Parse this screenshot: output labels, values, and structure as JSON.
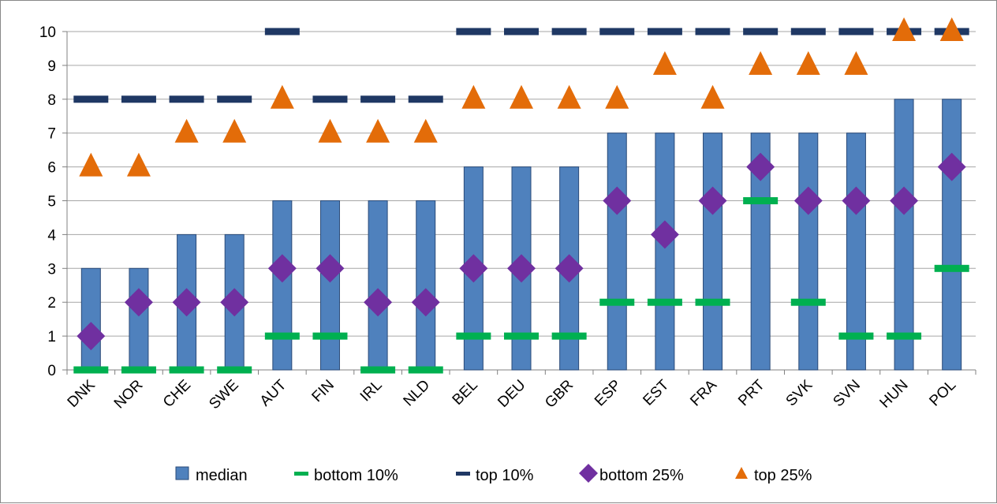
{
  "chart_data": {
    "type": "bar",
    "title": "",
    "xlabel": "",
    "ylabel": "",
    "ylim": [
      0,
      10
    ],
    "y_ticks": [
      0,
      1,
      2,
      3,
      4,
      5,
      6,
      7,
      8,
      9,
      10
    ],
    "grid": "horizontal",
    "legend_position": "bottom",
    "categories": [
      "DNK",
      "NOR",
      "CHE",
      "SWE",
      "AUT",
      "FIN",
      "IRL",
      "NLD",
      "BEL",
      "DEU",
      "GBR",
      "ESP",
      "EST",
      "FRA",
      "PRT",
      "SVK",
      "SVN",
      "HUN",
      "POL"
    ],
    "series": [
      {
        "name": "median",
        "kind": "bar",
        "color": "#4F81BD",
        "values": [
          3,
          3,
          4,
          4,
          5,
          5,
          5,
          5,
          6,
          6,
          6,
          7,
          7,
          7,
          7,
          7,
          7,
          8,
          8
        ]
      },
      {
        "name": "bottom 10%",
        "kind": "dash",
        "color": "#00B050",
        "values": [
          0,
          0,
          0,
          0,
          1,
          1,
          0,
          0,
          1,
          1,
          1,
          2,
          2,
          2,
          5,
          2,
          1,
          1,
          3
        ]
      },
      {
        "name": "top 10%",
        "kind": "dash",
        "color": "#1F3864",
        "values": [
          8,
          8,
          8,
          8,
          10,
          8,
          8,
          8,
          10,
          10,
          10,
          10,
          10,
          10,
          10,
          10,
          10,
          10,
          10
        ]
      },
      {
        "name": "bottom 25%",
        "kind": "diamond",
        "color": "#7030A0",
        "values": [
          1,
          2,
          2,
          2,
          3,
          3,
          2,
          2,
          3,
          3,
          3,
          5,
          4,
          5,
          6,
          5,
          5,
          5,
          6
        ]
      },
      {
        "name": "top 25%",
        "kind": "triangle",
        "color": "#E36C09",
        "values": [
          6,
          6,
          7,
          7,
          8,
          7,
          7,
          7,
          8,
          8,
          8,
          8,
          9,
          8,
          9,
          9,
          9,
          10,
          10
        ]
      }
    ]
  }
}
